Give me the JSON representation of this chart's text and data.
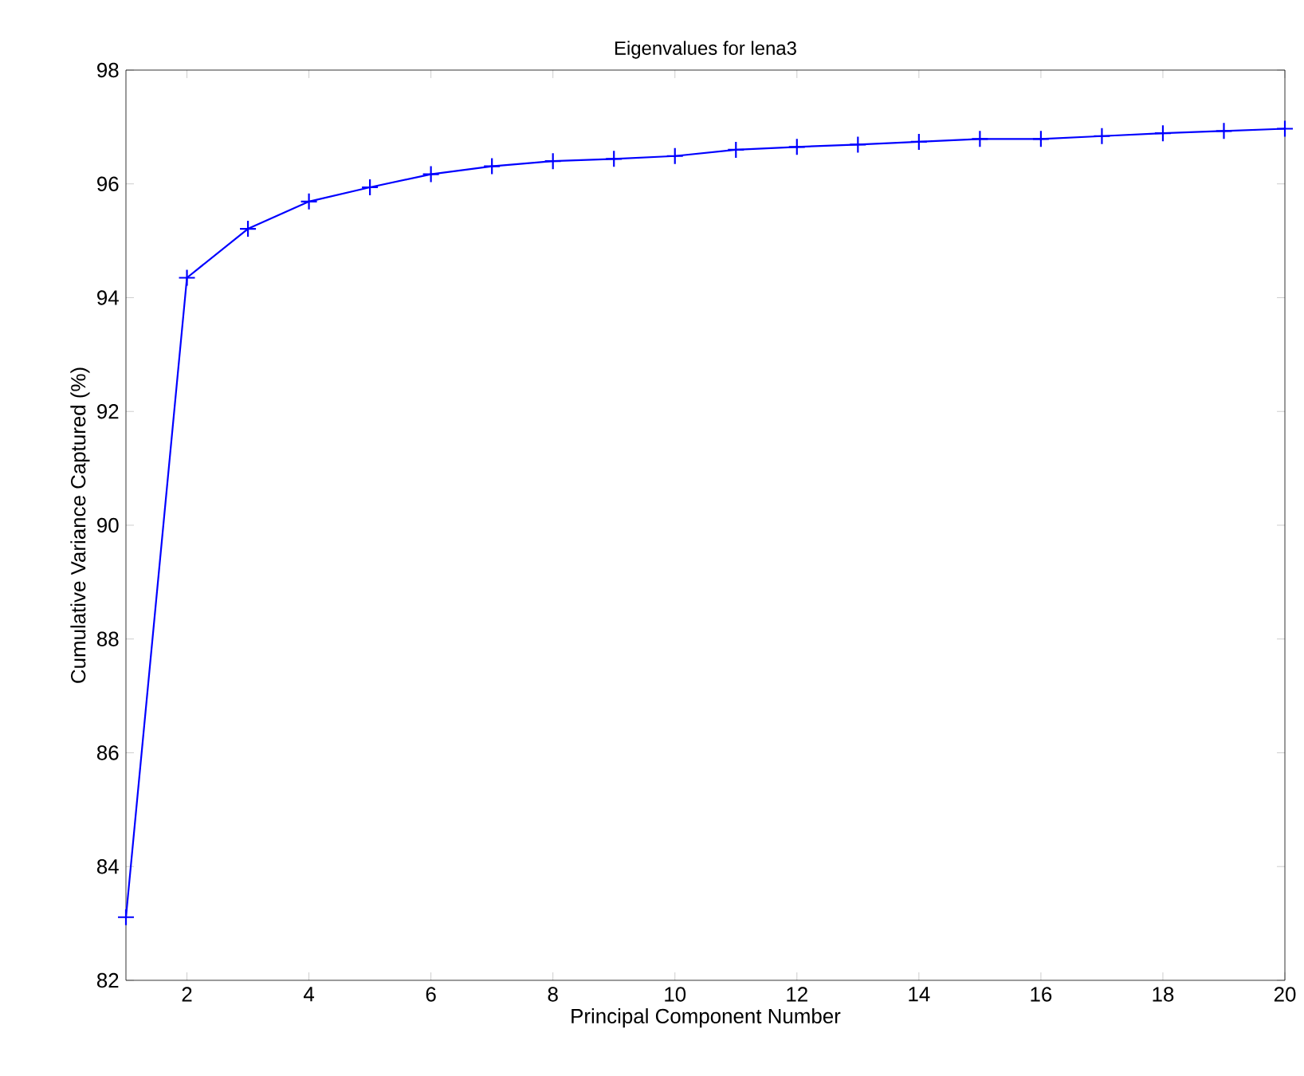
{
  "chart_data": {
    "type": "line",
    "title": "Eigenvalues for lena3",
    "xlabel": "Principal Component Number",
    "ylabel": "Cumulative Variance Captured (%)",
    "x": [
      1,
      2,
      3,
      4,
      5,
      6,
      7,
      8,
      9,
      10,
      11,
      12,
      13,
      14,
      15,
      16,
      17,
      18,
      19,
      20
    ],
    "series": [
      {
        "color": "#0000ff",
        "values": [
          83.11,
          94.35,
          95.21,
          95.69,
          95.94,
          96.17,
          96.31,
          96.4,
          96.44,
          96.49,
          96.6,
          96.65,
          96.69,
          96.74,
          96.79,
          96.79,
          96.84,
          96.89,
          96.93,
          96.97
        ]
      }
    ],
    "xlim": [
      1,
      20
    ],
    "ylim": [
      82,
      98
    ],
    "xticks": [
      2,
      4,
      6,
      8,
      10,
      12,
      14,
      16,
      18,
      20
    ],
    "yticks": [
      82,
      84,
      86,
      88,
      90,
      92,
      94,
      96,
      98
    ],
    "marker": "cross",
    "line_style": "solid"
  }
}
